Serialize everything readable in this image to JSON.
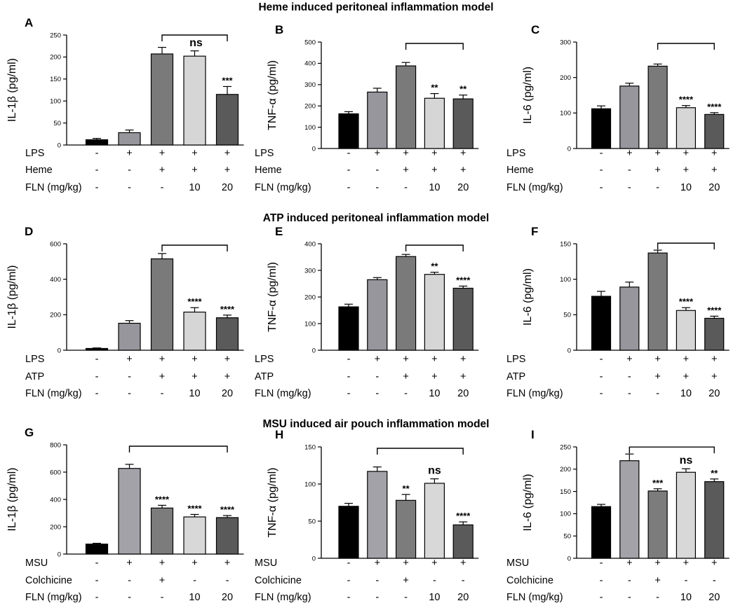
{
  "colors": {
    "g1": "#000000",
    "g2": "#96969c",
    "g3": "#7a7a7a",
    "g4": "#d6d6d6",
    "g5": "#5a5a5a",
    "m2": "#a2a2a8",
    "m3": "#7c7c7c",
    "m4": "#d8d8d8",
    "m5": "#5a5a5a"
  },
  "sections": [
    {
      "title": "Heme induced peritoneal inflammation model"
    },
    {
      "title": "ATP induced peritoneal inflammation model"
    },
    {
      "title": "MSU induced air pouch inflammation model"
    }
  ],
  "chart_data": [
    {
      "panel": "A",
      "type": "bar",
      "ylabel": "IL-1β (pg/ml)",
      "ylim": [
        0,
        250
      ],
      "yticks": [
        "0",
        "50",
        "100",
        "150",
        "200",
        "250"
      ],
      "values": [
        12,
        28,
        207,
        202,
        115
      ],
      "errors": [
        3,
        6,
        15,
        12,
        18
      ],
      "colors": [
        "g1",
        "g2",
        "g3",
        "g4",
        "g5"
      ],
      "significance": [
        "",
        "",
        "",
        "",
        "***"
      ],
      "comparison": {
        "from": 2,
        "to": 4,
        "label": "ns"
      },
      "conditions": [
        {
          "label": "LPS",
          "marks": [
            "-",
            "+",
            "+",
            "+",
            "+"
          ]
        },
        {
          "label": "Heme",
          "marks": [
            "-",
            "-",
            "+",
            "+",
            "+"
          ]
        },
        {
          "label": "FLN (mg/kg)",
          "marks": [
            "-",
            "-",
            "-",
            "10",
            "20"
          ]
        }
      ]
    },
    {
      "panel": "B",
      "type": "bar",
      "ylabel": "TNF-α (pg/ml)",
      "ylim": [
        0,
        500
      ],
      "yticks": [
        "0",
        "100",
        "200",
        "300",
        "400",
        "500"
      ],
      "values": [
        163,
        265,
        388,
        236,
        233
      ],
      "errors": [
        10,
        18,
        16,
        22,
        18
      ],
      "colors": [
        "g1",
        "g2",
        "g3",
        "g4",
        "g5"
      ],
      "significance": [
        "",
        "",
        "",
        "**",
        "**"
      ],
      "comparison": {
        "from": 2,
        "to": 4,
        "label": ""
      },
      "conditions": [
        {
          "label": "LPS",
          "marks": [
            "-",
            "+",
            "+",
            "+",
            "+"
          ]
        },
        {
          "label": "Heme",
          "marks": [
            "-",
            "-",
            "+",
            "+",
            "+"
          ]
        },
        {
          "label": "FLN (mg/kg)",
          "marks": [
            "-",
            "-",
            "-",
            "10",
            "20"
          ]
        }
      ]
    },
    {
      "panel": "C",
      "type": "bar",
      "ylabel": "IL-6 (pg/ml)",
      "ylim": [
        0,
        300
      ],
      "yticks": [
        "0",
        "100",
        "200",
        "300"
      ],
      "values": [
        112,
        176,
        232,
        115,
        96
      ],
      "errors": [
        8,
        8,
        6,
        6,
        5
      ],
      "colors": [
        "g1",
        "g2",
        "g3",
        "g4",
        "g5"
      ],
      "significance": [
        "",
        "",
        "",
        "****",
        "****"
      ],
      "comparison": {
        "from": 2,
        "to": 4,
        "label": ""
      },
      "conditions": [
        {
          "label": "LPS",
          "marks": [
            "-",
            "+",
            "+",
            "+",
            "+"
          ]
        },
        {
          "label": "Heme",
          "marks": [
            "-",
            "-",
            "+",
            "+",
            "+"
          ]
        },
        {
          "label": "FLN (mg/kg)",
          "marks": [
            "-",
            "-",
            "-",
            "10",
            "20"
          ]
        }
      ]
    },
    {
      "panel": "D",
      "type": "bar",
      "ylabel": "IL-1β (pg/ml)",
      "ylim": [
        0,
        600
      ],
      "yticks": [
        "0",
        "200",
        "400",
        "600"
      ],
      "values": [
        10,
        152,
        515,
        215,
        183
      ],
      "errors": [
        3,
        15,
        30,
        25,
        15
      ],
      "colors": [
        "g1",
        "g2",
        "g3",
        "g4",
        "g5"
      ],
      "significance": [
        "",
        "",
        "",
        "****",
        "****"
      ],
      "comparison": {
        "from": 2,
        "to": 4,
        "label": ""
      },
      "conditions": [
        {
          "label": "LPS",
          "marks": [
            "-",
            "+",
            "+",
            "+",
            "+"
          ]
        },
        {
          "label": "ATP",
          "marks": [
            "-",
            "-",
            "+",
            "+",
            "+"
          ]
        },
        {
          "label": "FLN (mg/kg)",
          "marks": [
            "-",
            "-",
            "-",
            "10",
            "20"
          ]
        }
      ]
    },
    {
      "panel": "E",
      "type": "bar",
      "ylabel": "TNF-α (pg/ml)",
      "ylim": [
        0,
        400
      ],
      "yticks": [
        "0",
        "100",
        "200",
        "300",
        "400"
      ],
      "values": [
        163,
        265,
        352,
        285,
        233
      ],
      "errors": [
        10,
        8,
        8,
        8,
        8
      ],
      "colors": [
        "g1",
        "g2",
        "g3",
        "g4",
        "g5"
      ],
      "significance": [
        "",
        "",
        "",
        "**",
        "****"
      ],
      "comparison": {
        "from": 2,
        "to": 4,
        "label": ""
      },
      "conditions": [
        {
          "label": "LPS",
          "marks": [
            "-",
            "+",
            "+",
            "+",
            "+"
          ]
        },
        {
          "label": "ATP",
          "marks": [
            "-",
            "-",
            "+",
            "+",
            "+"
          ]
        },
        {
          "label": "FLN (mg/kg)",
          "marks": [
            "-",
            "-",
            "-",
            "10",
            "20"
          ]
        }
      ]
    },
    {
      "panel": "F",
      "type": "bar",
      "ylabel": "IL-6 (pg/ml)",
      "ylim": [
        0,
        150
      ],
      "yticks": [
        "0",
        "50",
        "100",
        "150"
      ],
      "values": [
        76,
        89,
        137,
        56,
        45
      ],
      "errors": [
        7,
        7,
        4,
        4,
        3
      ],
      "colors": [
        "g1",
        "g2",
        "g3",
        "g4",
        "g5"
      ],
      "significance": [
        "",
        "",
        "",
        "****",
        "****"
      ],
      "comparison": {
        "from": 2,
        "to": 4,
        "label": ""
      },
      "conditions": [
        {
          "label": "LPS",
          "marks": [
            "-",
            "+",
            "+",
            "+",
            "+"
          ]
        },
        {
          "label": "ATP",
          "marks": [
            "-",
            "-",
            "+",
            "+",
            "+"
          ]
        },
        {
          "label": "FLN (mg/kg)",
          "marks": [
            "-",
            "-",
            "-",
            "10",
            "20"
          ]
        }
      ]
    },
    {
      "panel": "G",
      "type": "bar",
      "ylabel": "IL-1β (pg/ml)",
      "ylim": [
        0,
        800
      ],
      "yticks": [
        "0",
        "200",
        "400",
        "600",
        "800"
      ],
      "values": [
        73,
        627,
        337,
        272,
        267
      ],
      "errors": [
        6,
        30,
        20,
        18,
        15
      ],
      "colors": [
        "g1",
        "m2",
        "m3",
        "m4",
        "m5"
      ],
      "significance": [
        "",
        "",
        "****",
        "****",
        "****"
      ],
      "comparison": {
        "from": 1,
        "to": 4,
        "label": ""
      },
      "conditions": [
        {
          "label": "MSU",
          "marks": [
            "-",
            "+",
            "+",
            "+",
            "+"
          ]
        },
        {
          "label": "Colchicine",
          "marks": [
            "-",
            "-",
            "+",
            "-",
            "-"
          ]
        },
        {
          "label": "FLN (mg/kg)",
          "marks": [
            "-",
            "-",
            "-",
            "10",
            "20"
          ]
        }
      ]
    },
    {
      "panel": "H",
      "type": "bar",
      "ylabel": "TNF-α (pg/ml)",
      "ylim": [
        0,
        150
      ],
      "yticks": [
        "0",
        "50",
        "100",
        "150"
      ],
      "values": [
        70,
        117,
        78,
        101,
        45
      ],
      "errors": [
        4,
        6,
        8,
        6,
        4
      ],
      "colors": [
        "g1",
        "m2",
        "m3",
        "m4",
        "m5"
      ],
      "significance": [
        "",
        "",
        "**",
        "ns",
        "****"
      ],
      "comparison": {
        "from": 1,
        "to": 4,
        "label": ""
      },
      "conditions": [
        {
          "label": "MSU",
          "marks": [
            "-",
            "+",
            "+",
            "+",
            "+"
          ]
        },
        {
          "label": "Colchicine",
          "marks": [
            "-",
            "-",
            "+",
            "-",
            "-"
          ]
        },
        {
          "label": "FLN (mg/kg)",
          "marks": [
            "-",
            "-",
            "-",
            "10",
            "20"
          ]
        }
      ]
    },
    {
      "panel": "I",
      "type": "bar",
      "ylabel": "IL-6 (pg/ml)",
      "ylim": [
        0,
        250
      ],
      "yticks": [
        "0",
        "50",
        "100",
        "150",
        "200",
        "250"
      ],
      "values": [
        116,
        219,
        151,
        193,
        172
      ],
      "errors": [
        5,
        15,
        5,
        8,
        6
      ],
      "colors": [
        "g1",
        "m2",
        "m3",
        "m4",
        "m5"
      ],
      "significance": [
        "",
        "",
        "***",
        "ns",
        "**"
      ],
      "comparison": {
        "from": 1,
        "to": 4,
        "label": ""
      },
      "conditions": [
        {
          "label": "MSU",
          "marks": [
            "-",
            "+",
            "+",
            "+",
            "+"
          ]
        },
        {
          "label": "Colchicine",
          "marks": [
            "-",
            "-",
            "+",
            "-",
            "-"
          ]
        },
        {
          "label": "FLN (mg/kg)",
          "marks": [
            "-",
            "-",
            "-",
            "10",
            "20"
          ]
        }
      ]
    }
  ]
}
